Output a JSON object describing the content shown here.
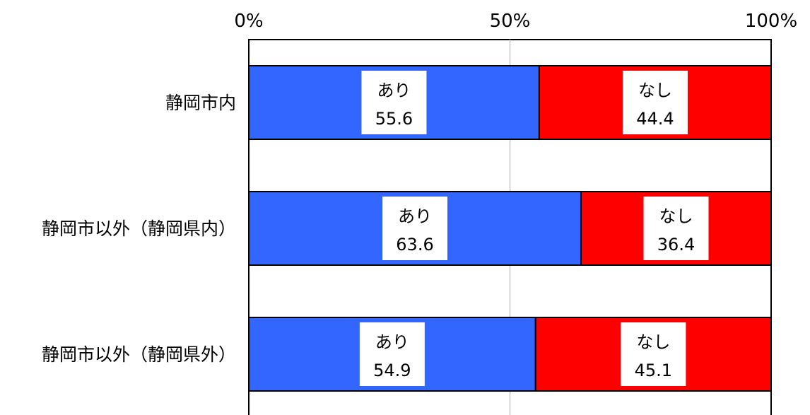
{
  "chart_data": {
    "type": "bar",
    "orientation": "horizontal",
    "stacked": "percent",
    "title": "",
    "xlabel": "",
    "ylabel": "",
    "xlim": [
      0,
      100
    ],
    "x_ticks": [
      "0%",
      "50%",
      "100%"
    ],
    "x_tick_values": [
      0,
      50,
      100
    ],
    "grid": "vertical line at 50%",
    "legend": "none (segment labels inside bars)",
    "categories": [
      "静岡市内",
      "静岡市以外（静岡県内）",
      "静岡市以外（静岡県外）"
    ],
    "series": [
      {
        "name": "あり",
        "values": [
          55.6,
          63.6,
          54.9
        ],
        "labels": [
          "55.6",
          "63.6",
          "54.9"
        ],
        "color": "#3366ff"
      },
      {
        "name": "なし",
        "values": [
          44.4,
          36.4,
          45.1
        ],
        "labels": [
          "44.4",
          "36.4",
          "45.1"
        ],
        "color": "#ff0000"
      }
    ]
  }
}
